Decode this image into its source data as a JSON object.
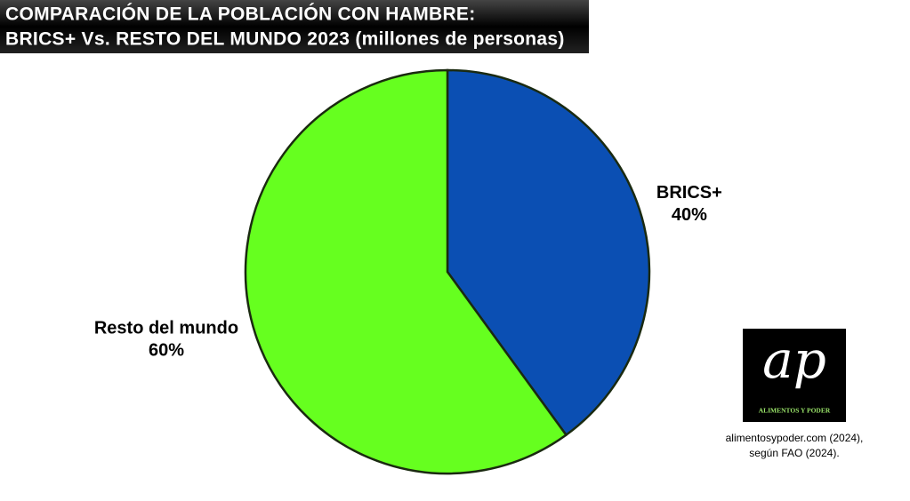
{
  "chart_data": {
    "type": "pie",
    "title": [
      "COMPARACIÓN DE LA POBLACIÓN CON HAMBRE:",
      "BRICS+ Vs. RESTO DEL MUNDO 2023 (millones de personas)"
    ],
    "categories": [
      "BRICS+",
      "Resto del mundo"
    ],
    "values": [
      40,
      60
    ],
    "value_labels": [
      "40%",
      "60%"
    ],
    "colors": [
      "#0b4fb3",
      "#66ff1f"
    ]
  },
  "logo": {
    "mark": "ap",
    "text": "ALIMENTOS Y PODER"
  },
  "source": [
    "alimentosypoder.com (2024),",
    "según FAO (2024)."
  ]
}
